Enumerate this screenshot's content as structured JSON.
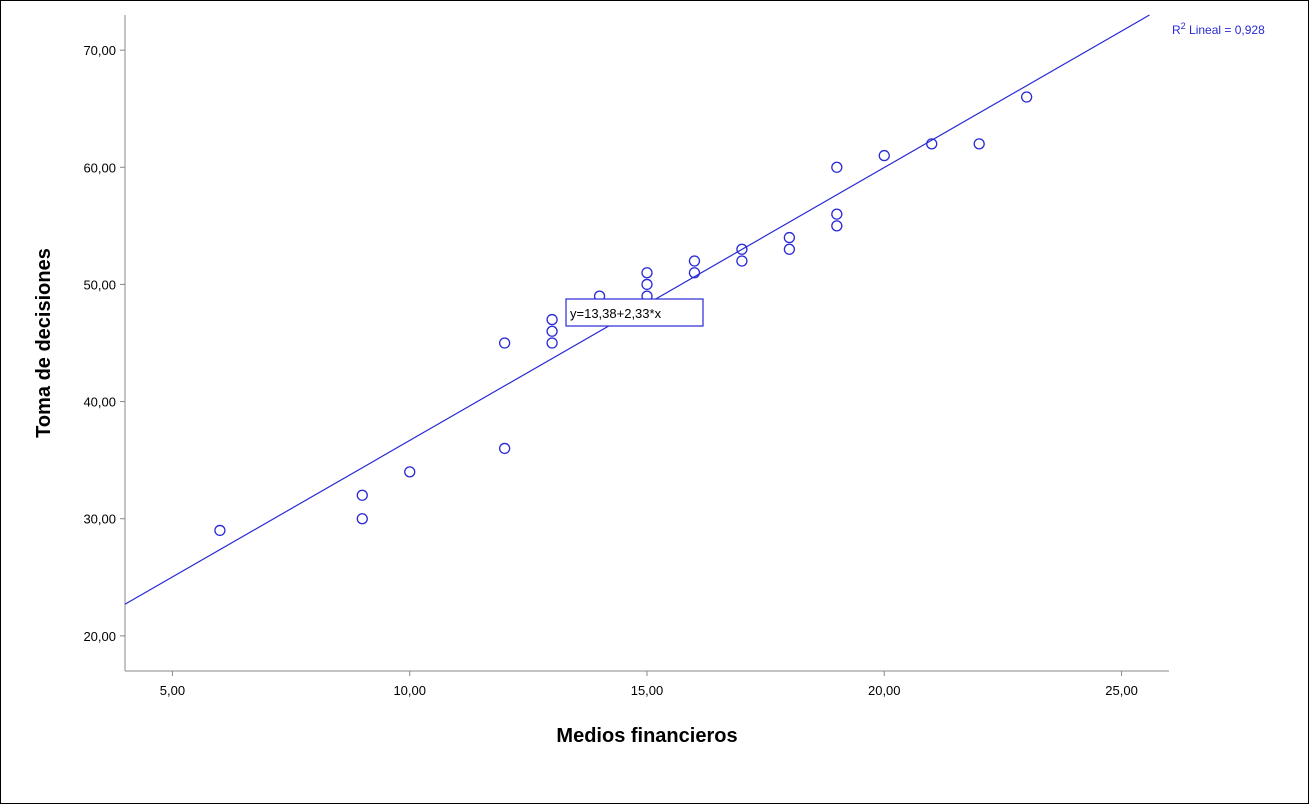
{
  "chart_data": {
    "type": "scatter",
    "title": "",
    "xlabel": "Medios financieros",
    "ylabel": "Toma de decisiones",
    "xlim": [
      4,
      26
    ],
    "ylim": [
      17,
      73
    ],
    "x_ticks": [
      5,
      10,
      15,
      20,
      25
    ],
    "y_ticks": [
      20,
      30,
      40,
      50,
      60,
      70
    ],
    "x_tick_labels": [
      "5,00",
      "10,00",
      "15,00",
      "20,00",
      "25,00"
    ],
    "y_tick_labels": [
      "20,00",
      "30,00",
      "40,00",
      "50,00",
      "60,00",
      "70,00"
    ],
    "grid": false,
    "points": [
      {
        "x": 6,
        "y": 29
      },
      {
        "x": 9,
        "y": 30
      },
      {
        "x": 9,
        "y": 32
      },
      {
        "x": 10,
        "y": 34
      },
      {
        "x": 12,
        "y": 36
      },
      {
        "x": 12,
        "y": 45
      },
      {
        "x": 13,
        "y": 45
      },
      {
        "x": 13,
        "y": 46
      },
      {
        "x": 13,
        "y": 47
      },
      {
        "x": 14,
        "y": 49
      },
      {
        "x": 15,
        "y": 49
      },
      {
        "x": 15,
        "y": 50
      },
      {
        "x": 15,
        "y": 51
      },
      {
        "x": 16,
        "y": 51
      },
      {
        "x": 16,
        "y": 52
      },
      {
        "x": 17,
        "y": 52
      },
      {
        "x": 17,
        "y": 53
      },
      {
        "x": 18,
        "y": 53
      },
      {
        "x": 18,
        "y": 54
      },
      {
        "x": 19,
        "y": 55
      },
      {
        "x": 19,
        "y": 56
      },
      {
        "x": 19,
        "y": 60
      },
      {
        "x": 20,
        "y": 61
      },
      {
        "x": 21,
        "y": 62
      },
      {
        "x": 22,
        "y": 62
      },
      {
        "x": 23,
        "y": 66
      }
    ],
    "fit_line": {
      "intercept": 13.38,
      "slope": 2.33
    },
    "fit_label": "y=13,38+2,33*x",
    "r2_prefix": "R",
    "r2_sup": "2",
    "r2_suffix": " Lineal = 0,928",
    "colors": {
      "points": "#2929d6",
      "line": "#2929d6",
      "axes": "#888888"
    }
  }
}
